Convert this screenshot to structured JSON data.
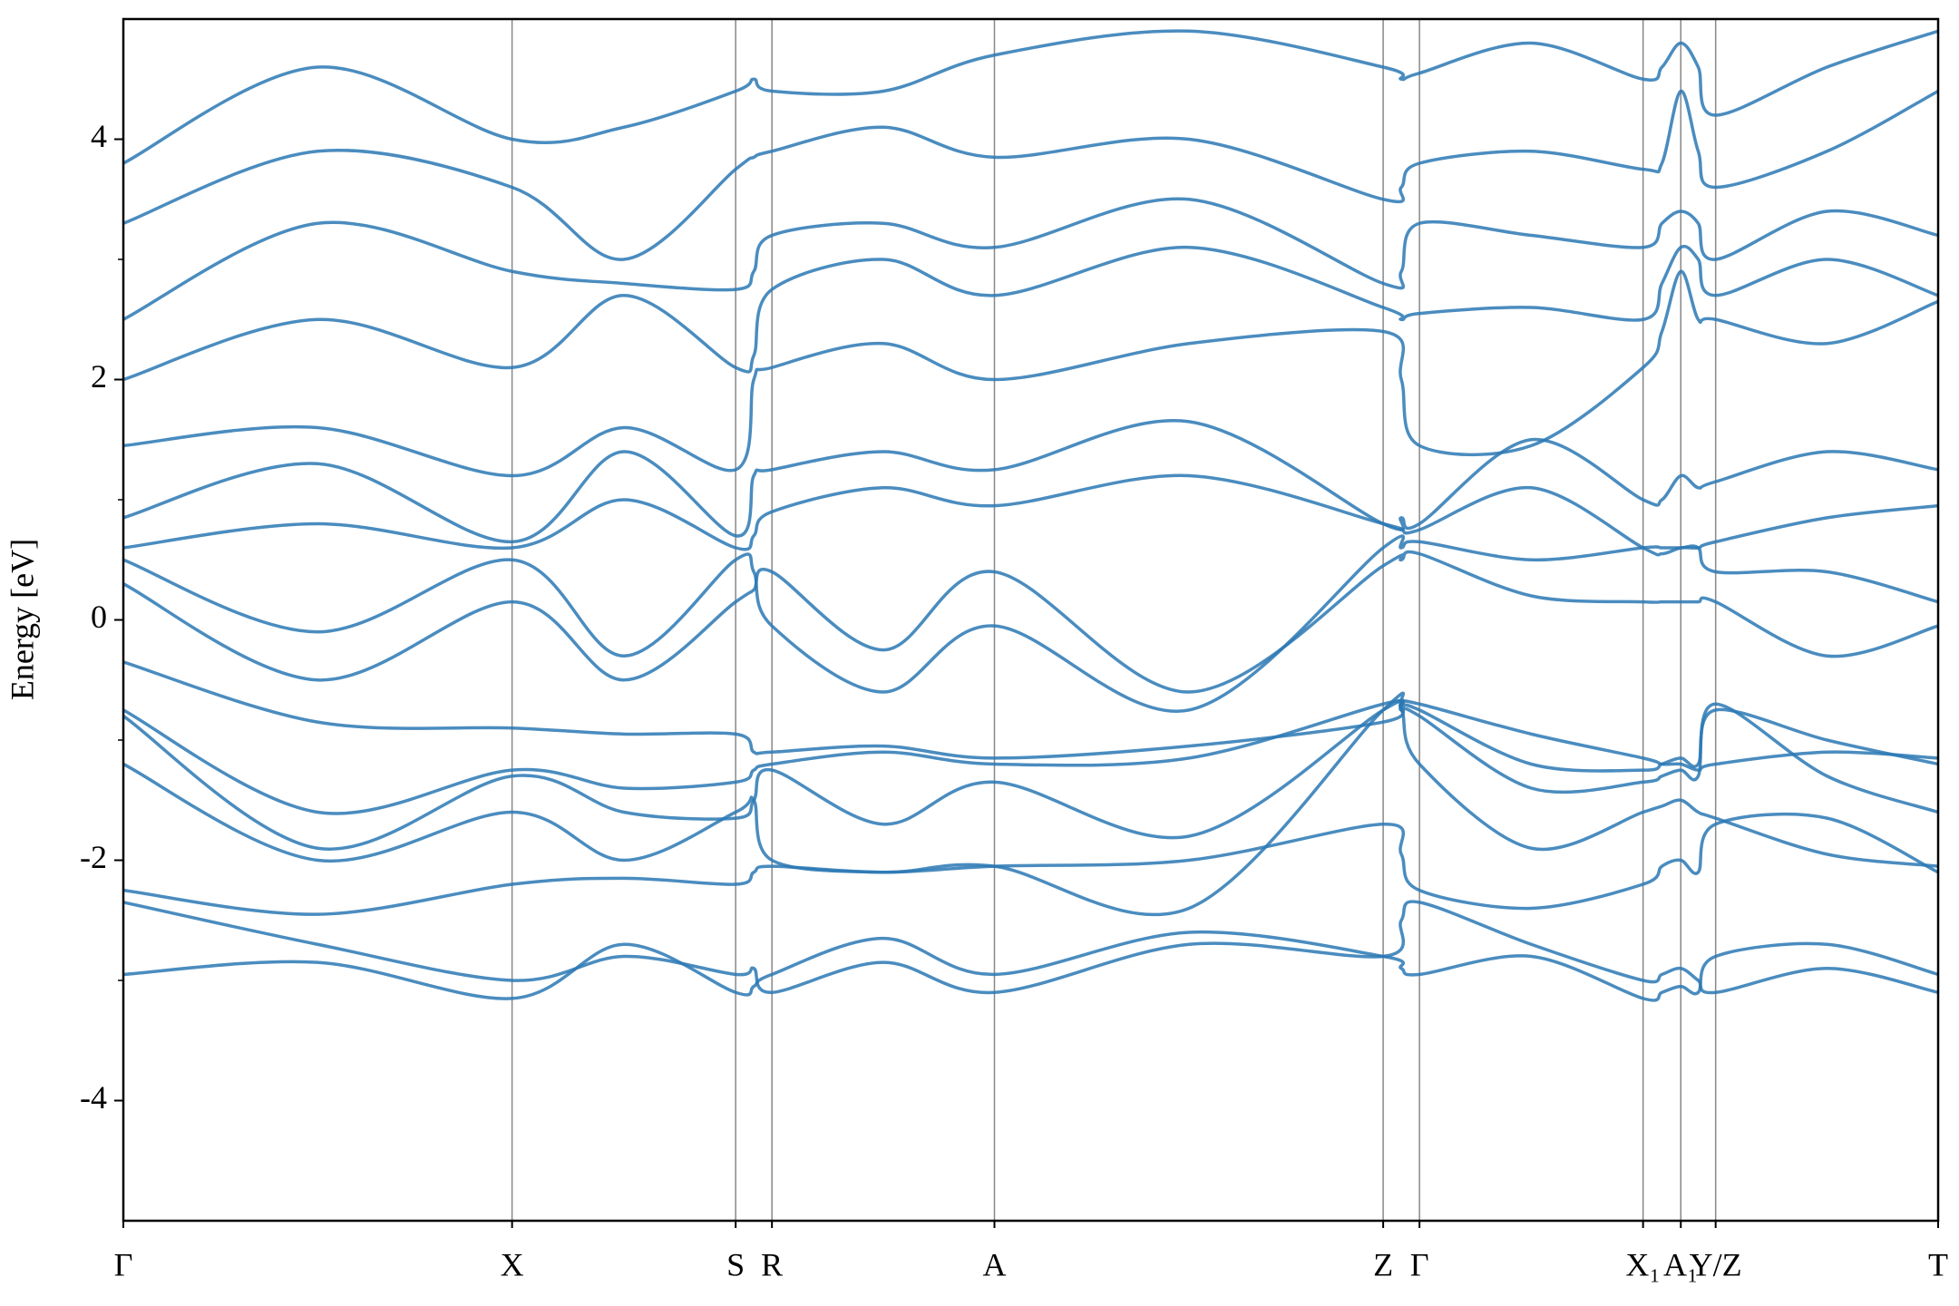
{
  "chart_data": {
    "type": "line",
    "ylabel": "Energy [eV]",
    "color": "#2a78b4",
    "xgrid": true,
    "xlim": [
      0,
      5.0
    ],
    "ylim": [
      -5,
      5
    ],
    "yticks": [
      -4,
      -2,
      0,
      2,
      4
    ],
    "yminorticks": [
      -3,
      -1,
      1,
      3
    ],
    "xticks": [
      {
        "value": 0,
        "label": "Γ"
      },
      {
        "value": 1.071,
        "label": "X"
      },
      {
        "value": 1.687,
        "label": "S"
      },
      {
        "value": 1.787,
        "label": "R"
      },
      {
        "value": 2.4,
        "label": "A"
      },
      {
        "value": 3.471,
        "label": "Z"
      },
      {
        "value": 3.571,
        "label": "Γ"
      },
      {
        "value": 4.187,
        "label": "X₁"
      },
      {
        "value": 4.291,
        "label": "A₁"
      },
      {
        "value": 4.387,
        "label": "Y/Z"
      },
      {
        "value": 5.0,
        "label": "T"
      }
    ],
    "x": [
      0,
      0.535,
      1.071,
      1.379,
      1.687,
      1.737,
      1.787,
      2.094,
      2.4,
      2.936,
      3.471,
      3.521,
      3.571,
      3.879,
      4.187,
      4.239,
      4.291,
      4.339,
      4.387,
      4.694,
      5.0
    ],
    "series": [
      {
        "values": [
          -2.95,
          -2.85,
          -3.15,
          -2.7,
          -3.1,
          -3.05,
          -2.95,
          -2.65,
          -2.95,
          -2.6,
          -2.8,
          -2.9,
          -2.95,
          -2.8,
          -3.15,
          -3.1,
          -3.05,
          -3.1,
          -2.8,
          -2.7,
          -2.95
        ]
      },
      {
        "values": [
          -2.35,
          -2.7,
          -3.0,
          -2.8,
          -2.95,
          -2.9,
          -3.1,
          -2.85,
          -3.1,
          -2.7,
          -2.8,
          -2.5,
          -2.35,
          -2.7,
          -3.0,
          -2.95,
          -2.9,
          -3.0,
          -3.1,
          -2.9,
          -3.1
        ]
      },
      {
        "values": [
          -2.25,
          -2.45,
          -2.2,
          -2.15,
          -2.2,
          -2.1,
          -2.05,
          -2.1,
          -2.05,
          -2.0,
          -1.7,
          -1.95,
          -2.25,
          -2.4,
          -2.2,
          -2.05,
          -2.0,
          -2.1,
          -1.7,
          -1.65,
          -2.1
        ]
      },
      {
        "values": [
          -1.2,
          -2.0,
          -1.6,
          -2.0,
          -1.6,
          -1.5,
          -2.0,
          -2.1,
          -2.05,
          -2.4,
          -0.75,
          -0.75,
          -1.2,
          -1.9,
          -1.6,
          -1.55,
          -1.5,
          -1.6,
          -1.65,
          -1.95,
          -2.05
        ]
      },
      {
        "values": [
          -0.8,
          -1.9,
          -1.3,
          -1.6,
          -1.65,
          -1.5,
          -1.25,
          -1.7,
          -1.35,
          -1.8,
          -0.75,
          -0.75,
          -0.8,
          -1.4,
          -1.35,
          -1.3,
          -1.25,
          -1.3,
          -0.7,
          -1.3,
          -1.6
        ]
      },
      {
        "values": [
          -0.75,
          -1.6,
          -1.25,
          -1.4,
          -1.35,
          -1.25,
          -1.2,
          -1.1,
          -1.2,
          -1.15,
          -0.7,
          -0.72,
          -0.75,
          -1.2,
          -1.25,
          -1.2,
          -1.15,
          -1.2,
          -0.75,
          -1.0,
          -1.2
        ]
      },
      {
        "values": [
          -0.35,
          -0.85,
          -0.9,
          -0.95,
          -0.95,
          -1.1,
          -1.1,
          -1.05,
          -1.15,
          -1.05,
          -0.85,
          -0.7,
          -0.7,
          -0.95,
          -1.15,
          -1.2,
          -1.2,
          -1.25,
          -1.2,
          -1.1,
          -1.15
        ]
      },
      {
        "values": [
          0.3,
          -0.5,
          0.15,
          -0.5,
          0.15,
          0.25,
          0.4,
          -0.25,
          0.4,
          -0.6,
          0.45,
          0.5,
          0.55,
          0.2,
          0.15,
          0.15,
          0.15,
          0.15,
          0.15,
          -0.3,
          -0.05
        ]
      },
      {
        "values": [
          0.5,
          -0.1,
          0.5,
          -0.3,
          0.5,
          0.4,
          -0.05,
          -0.6,
          -0.05,
          -0.75,
          0.6,
          0.6,
          0.65,
          0.5,
          0.6,
          0.6,
          0.6,
          0.6,
          0.4,
          0.4,
          0.15
        ]
      },
      {
        "values": [
          0.6,
          0.8,
          0.6,
          1.0,
          0.6,
          0.7,
          0.9,
          1.1,
          0.95,
          1.2,
          0.8,
          0.75,
          0.75,
          1.1,
          0.6,
          0.55,
          0.6,
          0.6,
          0.65,
          0.85,
          0.95
        ]
      },
      {
        "values": [
          0.85,
          1.3,
          0.65,
          1.4,
          0.7,
          1.2,
          1.25,
          1.4,
          1.25,
          1.65,
          0.8,
          0.85,
          0.8,
          1.5,
          1.0,
          1.0,
          1.2,
          1.1,
          1.15,
          1.4,
          1.25
        ]
      },
      {
        "values": [
          1.45,
          1.6,
          1.2,
          1.6,
          1.25,
          2.0,
          2.1,
          2.3,
          2.0,
          2.3,
          2.4,
          2.0,
          1.45,
          1.45,
          2.1,
          2.4,
          2.9,
          2.5,
          2.5,
          2.3,
          2.65
        ]
      },
      {
        "values": [
          2.0,
          2.5,
          2.1,
          2.7,
          2.1,
          2.2,
          2.75,
          3.0,
          2.7,
          3.1,
          2.6,
          2.5,
          2.55,
          2.6,
          2.5,
          2.8,
          3.1,
          3.0,
          2.7,
          3.0,
          2.7
        ]
      },
      {
        "values": [
          2.5,
          3.3,
          2.9,
          2.8,
          2.75,
          2.9,
          3.2,
          3.3,
          3.1,
          3.5,
          2.8,
          2.9,
          3.3,
          3.2,
          3.1,
          3.3,
          3.4,
          3.3,
          3.0,
          3.4,
          3.2
        ]
      },
      {
        "values": [
          3.3,
          3.9,
          3.6,
          3.0,
          3.75,
          3.85,
          3.9,
          4.1,
          3.85,
          4.0,
          3.5,
          3.6,
          3.8,
          3.9,
          3.75,
          3.8,
          4.4,
          3.9,
          3.6,
          3.9,
          4.4
        ]
      },
      {
        "values": [
          3.8,
          4.6,
          4.0,
          4.1,
          4.4,
          4.5,
          4.4,
          4.4,
          4.7,
          4.9,
          4.6,
          4.5,
          4.55,
          4.8,
          4.5,
          4.6,
          4.8,
          4.6,
          4.2,
          4.6,
          4.9
        ]
      }
    ]
  }
}
